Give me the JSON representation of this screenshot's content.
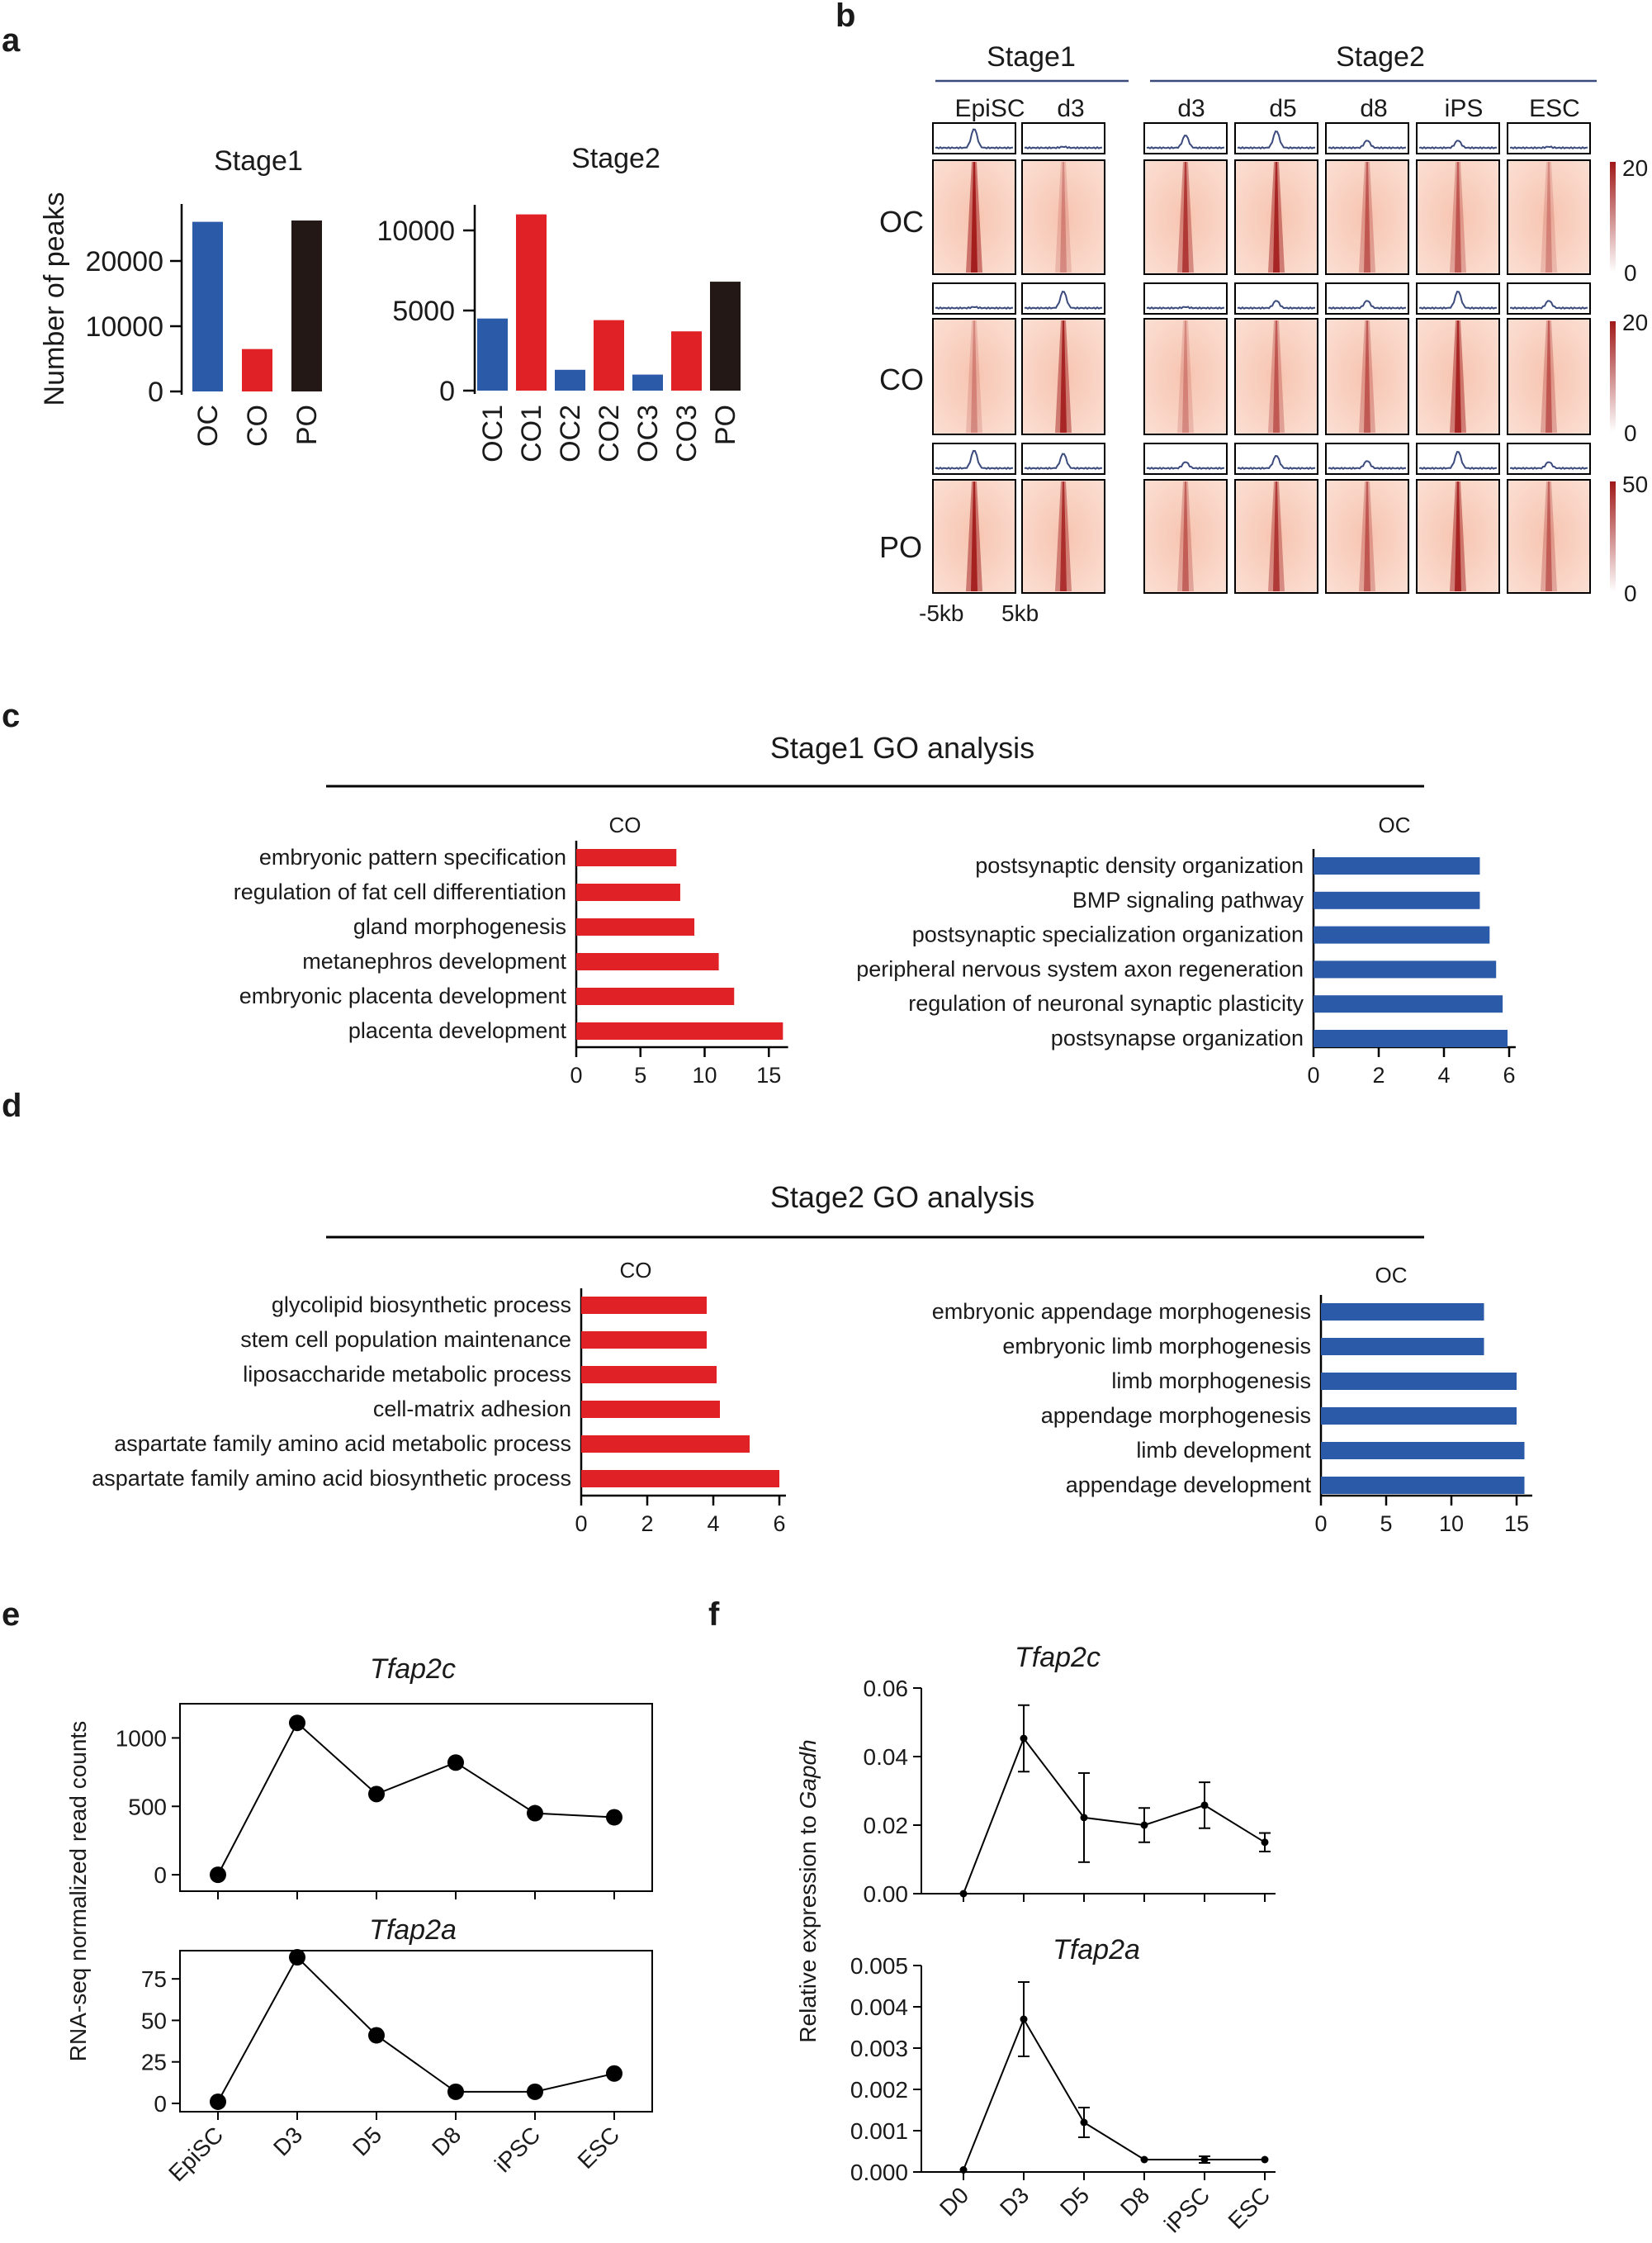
{
  "colors": {
    "blue": "#2a5aa8",
    "red": "#e02226",
    "black": "#231815",
    "navy": "#3b4a7c",
    "heat": "#a01818"
  },
  "panels": {
    "a": "a",
    "b": "b",
    "c": "c",
    "d": "d",
    "e": "e",
    "f": "f"
  },
  "panel_b": {
    "stage1_label": "Stage1",
    "stage2_label": "Stage2",
    "stage1_cols": [
      "EpiSC",
      "d3"
    ],
    "stage2_cols": [
      "d3",
      "d5",
      "d8",
      "iPS",
      "ESC"
    ],
    "rows": [
      "OC",
      "CO",
      "PO"
    ],
    "scale_max": [
      "20",
      "20",
      "50"
    ],
    "scale_min": "0",
    "x_left": "-5kb",
    "x_right": "5kb"
  },
  "chart_data": [
    {
      "id": "a1",
      "type": "bar",
      "title": "Stage1",
      "ylabel": "Number of peaks",
      "categories": [
        "OC",
        "CO",
        "PO"
      ],
      "values": [
        26000,
        6500,
        26200
      ],
      "colors": [
        "blue",
        "red",
        "black"
      ],
      "ylim": [
        0,
        28500
      ],
      "yticks": [
        0,
        10000,
        20000
      ],
      "ytick_labels": [
        "0",
        "10000",
        "20000"
      ]
    },
    {
      "id": "a2",
      "type": "bar",
      "title": "Stage2",
      "categories": [
        "OC1",
        "CO1",
        "OC2",
        "CO2",
        "OC3",
        "CO3",
        "PO"
      ],
      "values": [
        4500,
        11000,
        1300,
        4400,
        1000,
        3700,
        6800
      ],
      "colors": [
        "blue",
        "red",
        "blue",
        "red",
        "blue",
        "red",
        "black"
      ],
      "ylim": [
        0,
        12000
      ],
      "yticks": [
        0,
        5000,
        10000
      ],
      "ytick_labels": [
        "0",
        "5000",
        "10000"
      ]
    },
    {
      "id": "c_co",
      "type": "bar_h",
      "group_title": "Stage1 GO analysis",
      "subtitle": "CO",
      "color": "red",
      "categories": [
        "embryonic pattern specification",
        "regulation of fat cell differentiation",
        "gland morphogenesis",
        "metanephros development",
        "embryonic placenta development",
        "placenta development"
      ],
      "values": [
        7.8,
        8.1,
        9.2,
        11.1,
        12.3,
        16.1
      ],
      "xlim": [
        0,
        16.5
      ],
      "xticks": [
        0,
        5,
        10,
        15
      ],
      "xtick_labels": [
        "0",
        "5",
        "10",
        "15"
      ]
    },
    {
      "id": "c_oc",
      "type": "bar_h",
      "subtitle": "OC",
      "color": "blue",
      "categories": [
        "postsynaptic density organization",
        "BMP signaling pathway",
        "postsynaptic specialization organization",
        "peripheral nervous system axon regeneration",
        "regulation of neuronal synaptic plasticity",
        "postsynapse organization"
      ],
      "values": [
        5.1,
        5.1,
        5.4,
        5.6,
        5.8,
        5.95
      ],
      "xlim": [
        0,
        6.2
      ],
      "xticks": [
        0,
        2,
        4,
        6
      ],
      "xtick_labels": [
        "0",
        "2",
        "4",
        "6"
      ]
    },
    {
      "id": "d_co",
      "type": "bar_h",
      "group_title": "Stage2 GO analysis",
      "subtitle": "CO",
      "color": "red",
      "categories": [
        "glycolipid biosynthetic process",
        "stem cell population maintenance",
        "liposaccharide metabolic process",
        "cell-matrix adhesion",
        "aspartate family amino acid metabolic process",
        "aspartate family amino acid biosynthetic process"
      ],
      "values": [
        3.8,
        3.8,
        4.1,
        4.2,
        5.1,
        6.0
      ],
      "xlim": [
        0,
        6.2
      ],
      "xticks": [
        0,
        2,
        4,
        6
      ],
      "xtick_labels": [
        "0",
        "2",
        "4",
        "6"
      ]
    },
    {
      "id": "d_oc",
      "type": "bar_h",
      "subtitle": "OC",
      "color": "blue",
      "categories": [
        "embryonic appendage morphogenesis",
        "embryonic limb morphogenesis",
        "limb morphogenesis",
        "appendage morphogenesis",
        "limb development",
        "appendage development"
      ],
      "values": [
        12.5,
        12.5,
        15.0,
        15.0,
        15.6,
        15.6
      ],
      "xlim": [
        0,
        16.2
      ],
      "xticks": [
        0,
        5,
        10,
        15
      ],
      "xtick_labels": [
        "0",
        "5",
        "10",
        "15"
      ]
    },
    {
      "id": "e1",
      "type": "line",
      "title": "Tfap2c",
      "ylabel": "RNA-seq normalized read counts",
      "categories": [
        "EpiSC",
        "D3",
        "D5",
        "D8",
        "iPSC",
        "ESC"
      ],
      "values": [
        0,
        1110,
        590,
        820,
        450,
        420
      ],
      "ylim": [
        -120,
        1250
      ],
      "yticks": [
        0,
        500,
        1000
      ],
      "ytick_labels": [
        "0",
        "500",
        "1000"
      ]
    },
    {
      "id": "e2",
      "type": "line",
      "title": "Tfap2a",
      "categories": [
        "EpiSC",
        "D3",
        "D5",
        "D8",
        "iPSC",
        "ESC"
      ],
      "values": [
        1,
        88,
        41,
        7,
        7,
        18
      ],
      "ylim": [
        -5,
        92
      ],
      "yticks": [
        0,
        25,
        50,
        75
      ],
      "ytick_labels": [
        "0",
        "25",
        "50",
        "75"
      ]
    },
    {
      "id": "f1",
      "type": "line_err",
      "title": "Tfap2c",
      "ylabel": "Relative expression to Gapdh",
      "categories": [
        "D0",
        "D3",
        "D5",
        "D8",
        "iPSC",
        "ESC"
      ],
      "values": [
        0,
        0.0453,
        0.0222,
        0.02,
        0.0258,
        0.015
      ],
      "errors": [
        0,
        0.0097,
        0.013,
        0.005,
        0.0067,
        0.0027
      ],
      "ylim": [
        0,
        0.06
      ],
      "yticks": [
        0,
        0.02,
        0.04,
        0.06
      ],
      "ytick_labels": [
        "0.00",
        "0.02",
        "0.04",
        "0.06"
      ]
    },
    {
      "id": "f2",
      "type": "line_err",
      "title": "Tfap2a",
      "categories": [
        "D0",
        "D3",
        "D5",
        "D8",
        "iPSC",
        "ESC"
      ],
      "values": [
        5e-05,
        0.0037,
        0.0012,
        0.0003,
        0.0003,
        0.0003
      ],
      "errors": [
        0,
        0.0009,
        0.00036,
        0,
        8e-05,
        0
      ],
      "ylim": [
        0,
        0.005
      ],
      "yticks": [
        0,
        0.001,
        0.002,
        0.003,
        0.004,
        0.005
      ],
      "ytick_labels": [
        "0.000",
        "0.001",
        "0.002",
        "0.003",
        "0.004",
        "0.005"
      ]
    }
  ]
}
